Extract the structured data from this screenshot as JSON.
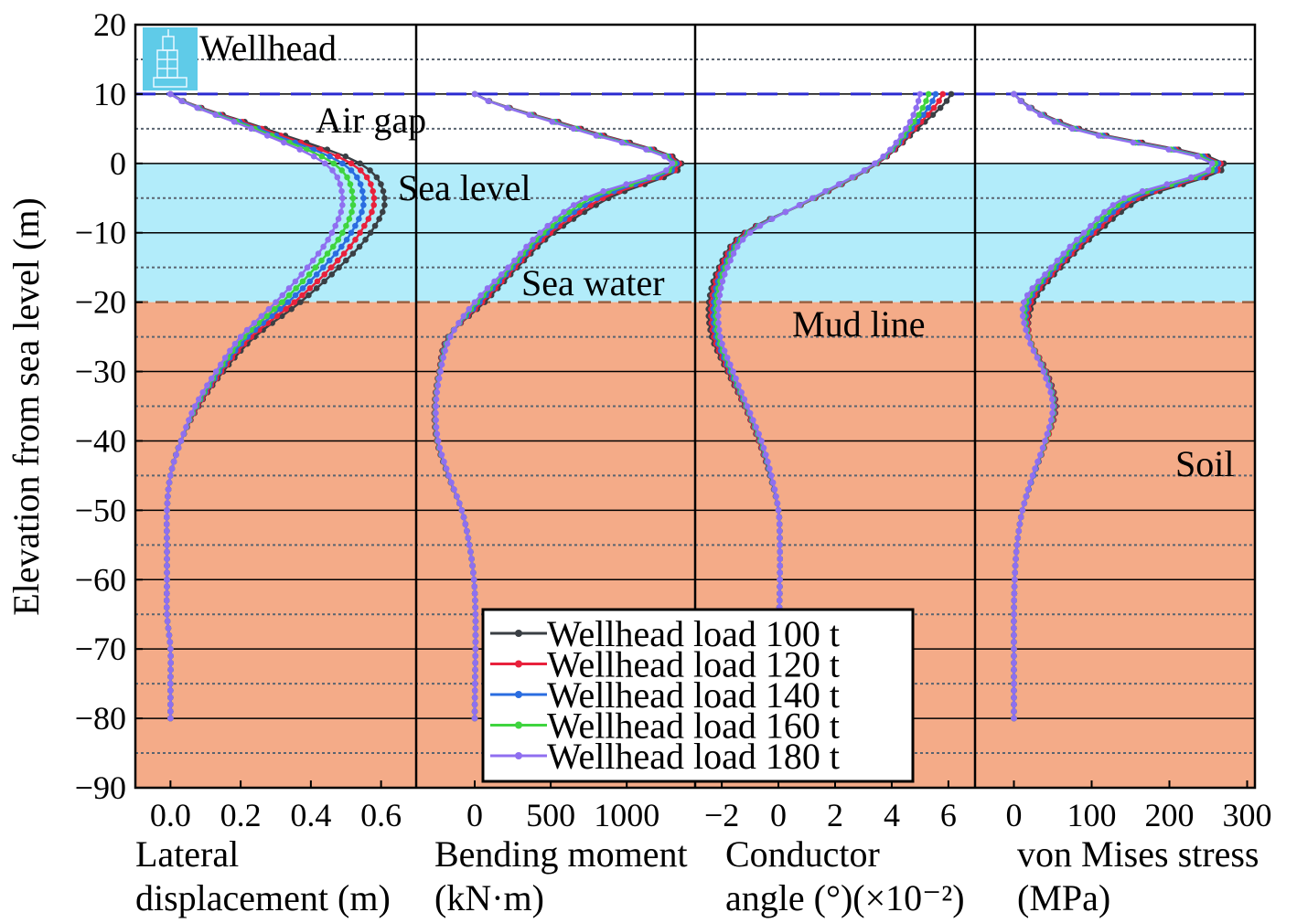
{
  "chart_data": {
    "type": "line",
    "ylabel": "Elevation from sea level (m)",
    "ylim": [
      -90,
      20
    ],
    "yticks": [
      "20",
      "10",
      "0",
      "−10",
      "−20",
      "−30",
      "−40",
      "−50",
      "−60",
      "−70",
      "−80",
      "−90"
    ],
    "yticks_values": [
      20,
      10,
      0,
      -10,
      -20,
      -30,
      -40,
      -50,
      -60,
      -70,
      -80,
      -90
    ],
    "elevation": [
      10,
      5,
      0,
      -5,
      -10,
      -15,
      -20,
      -25,
      -30,
      -35,
      -40,
      -45,
      -50,
      -55,
      -60,
      -65,
      -70,
      -75,
      -80
    ],
    "zones": {
      "air_top": 10,
      "sea_level": 0,
      "mud_line": -20,
      "bottom": -90
    },
    "colors": {
      "sea": "#b2ecfa",
      "soil": "#f4ab88",
      "wellhead_line": "#2a2ad0",
      "mud_line": "#9a6040"
    },
    "annotations": {
      "wellhead": "Wellhead",
      "air_gap": "Air gap",
      "sea_level": "Sea level",
      "sea_water": "Sea water",
      "mud_line": "Mud line",
      "soil": "Soil"
    },
    "legend": {
      "position": "bottom-center",
      "entries": [
        "Wellhead load 100 t",
        "Wellhead load 120 t",
        "Wellhead load 140 t",
        "Wellhead load 160 t",
        "Wellhead load 180 t"
      ]
    },
    "series_colors": [
      "#3a3f44",
      "#e8213c",
      "#2a6de0",
      "#3fd43f",
      "#8f6ff0"
    ],
    "panels": [
      {
        "xlabel": [
          "Lateral",
          "displacement (m)"
        ],
        "xlim": [
          -0.1,
          0.7
        ],
        "xticks": [
          "0.0",
          "0.2",
          "0.4",
          "0.6"
        ],
        "xticks_values": [
          0,
          0.2,
          0.4,
          0.6
        ],
        "series": [
          [
            0,
            0.27,
            0.54,
            0.61,
            0.57,
            0.48,
            0.37,
            0.24,
            0.15,
            0.08,
            0.03,
            0,
            -0.01,
            -0.01,
            -0.01,
            -0.01,
            0,
            0,
            0
          ],
          [
            0,
            0.26,
            0.515,
            0.58,
            0.54,
            0.458,
            0.353,
            0.23,
            0.145,
            0.078,
            0.03,
            0,
            -0.01,
            -0.01,
            -0.01,
            -0.01,
            0,
            0,
            0
          ],
          [
            0,
            0.25,
            0.49,
            0.55,
            0.515,
            0.435,
            0.335,
            0.22,
            0.14,
            0.075,
            0.03,
            0,
            -0.01,
            -0.01,
            -0.01,
            -0.01,
            0,
            0,
            0
          ],
          [
            0,
            0.24,
            0.465,
            0.52,
            0.49,
            0.413,
            0.318,
            0.21,
            0.135,
            0.073,
            0.03,
            0,
            -0.01,
            -0.01,
            -0.01,
            -0.01,
            0,
            0,
            0
          ],
          [
            0,
            0.23,
            0.44,
            0.49,
            0.46,
            0.39,
            0.3,
            0.2,
            0.13,
            0.07,
            0.03,
            0,
            -0.01,
            -0.01,
            -0.01,
            -0.01,
            0,
            0,
            0
          ]
        ]
      },
      {
        "xlabel": [
          "Bending moment",
          "(kN·m)"
        ],
        "xlim": [
          -385,
          1450
        ],
        "xticks": [
          "0",
          "500",
          "1000"
        ],
        "xticks_values": [
          0,
          500,
          1000
        ],
        "series": [
          [
            0,
            700,
            1360,
            880,
            520,
            280,
            65,
            -175,
            -235,
            -265,
            -250,
            -175,
            -85,
            -35,
            -5,
            5,
            5,
            2,
            0
          ],
          [
            0,
            688,
            1345,
            843,
            498,
            265,
            49,
            -171,
            -233,
            -263,
            -248,
            -174,
            -85,
            -35,
            -5,
            5,
            5,
            2,
            0
          ],
          [
            0,
            675,
            1330,
            805,
            475,
            250,
            33,
            -168,
            -230,
            -260,
            -245,
            -173,
            -85,
            -35,
            -5,
            5,
            5,
            2,
            0
          ],
          [
            0,
            663,
            1315,
            768,
            453,
            235,
            16,
            -164,
            -228,
            -258,
            -243,
            -171,
            -85,
            -35,
            -5,
            5,
            5,
            2,
            0
          ],
          [
            0,
            650,
            1300,
            730,
            430,
            220,
            0,
            -160,
            -225,
            -255,
            -240,
            -170,
            -85,
            -35,
            -5,
            5,
            5,
            2,
            0
          ]
        ]
      },
      {
        "xlabel": [
          "Conductor",
          "angle (°)(×10⁻²)"
        ],
        "xlim": [
          -2.94,
          6.94
        ],
        "xticks": [
          "−2",
          "0",
          "2",
          "4",
          "6"
        ],
        "xticks_values": [
          -2,
          0,
          2,
          4,
          6
        ],
        "series": [
          [
            6.1,
            4.9,
            3.5,
            1.3,
            -1.2,
            -2.1,
            -2.45,
            -2.35,
            -1.8,
            -1.2,
            -0.7,
            -0.3,
            0,
            0.05,
            0.05,
            0.03,
            0,
            0,
            0
          ],
          [
            5.8,
            4.8,
            3.48,
            1.28,
            -1.15,
            -2.03,
            -2.36,
            -2.28,
            -1.75,
            -1.18,
            -0.68,
            -0.29,
            0,
            0.05,
            0.05,
            0.03,
            0,
            0,
            0
          ],
          [
            5.55,
            4.7,
            3.45,
            1.25,
            -1.1,
            -1.95,
            -2.28,
            -2.2,
            -1.7,
            -1.15,
            -0.65,
            -0.28,
            0,
            0.05,
            0.05,
            0.03,
            0,
            0,
            0
          ],
          [
            5.3,
            4.6,
            3.43,
            1.23,
            -1.05,
            -1.88,
            -2.19,
            -2.13,
            -1.65,
            -1.13,
            -0.63,
            -0.26,
            0,
            0.05,
            0.05,
            0.03,
            0,
            0,
            0
          ],
          [
            5.0,
            4.5,
            3.4,
            1.2,
            -1.0,
            -1.8,
            -2.1,
            -2.05,
            -1.6,
            -1.1,
            -0.6,
            -0.25,
            0,
            0.05,
            0.05,
            0.03,
            0,
            0,
            0
          ]
        ]
      },
      {
        "xlabel": [
          "von Mises stress",
          "(MPa)"
        ],
        "xlim": [
          -50,
          310
        ],
        "xticks": [
          "0",
          "100",
          "200",
          "300"
        ],
        "xticks_values": [
          0,
          100,
          200,
          300
        ],
        "series": [
          [
            0,
            84,
            270,
            165,
            107,
            60,
            25,
            20,
            42,
            54,
            42,
            25,
            11,
            4,
            1,
            0,
            0,
            0,
            0
          ],
          [
            0,
            82,
            266,
            159,
            103,
            57,
            22,
            20,
            41,
            53,
            42,
            25,
            11,
            4,
            1,
            0,
            0,
            0,
            0
          ],
          [
            0,
            80,
            263,
            154,
            99,
            54,
            19,
            19,
            40,
            52,
            41,
            25,
            11,
            4,
            1,
            0,
            0,
            0,
            0
          ],
          [
            0,
            77,
            259,
            148,
            94,
            51,
            16,
            19,
            39,
            51,
            41,
            24,
            11,
            4,
            1,
            0,
            0,
            0,
            0
          ],
          [
            0,
            75,
            255,
            142,
            90,
            48,
            13,
            18,
            38,
            50,
            40,
            24,
            11,
            4,
            1,
            0,
            0,
            0,
            0
          ]
        ]
      }
    ]
  }
}
